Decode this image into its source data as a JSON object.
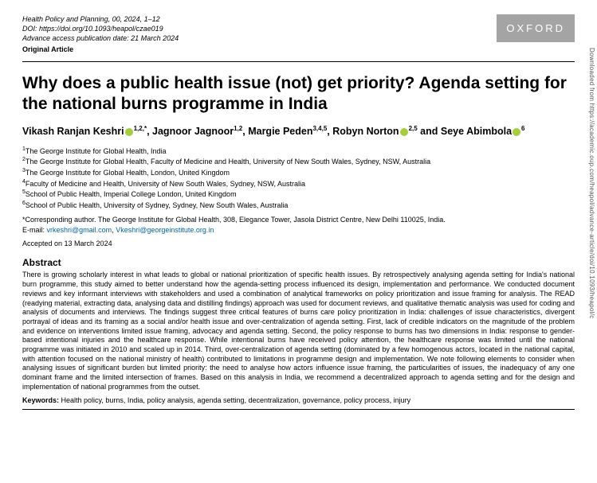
{
  "meta": {
    "journal_line": "Health Policy and Planning, 00, 2024, 1–12",
    "doi_line": "DOI: https://doi.org/10.1093/heapol/czae019",
    "access_line": "Advance access publication date: 21 March 2024",
    "article_type": "Original Article"
  },
  "publisher_badge": "OXFORD",
  "title": "Why does a public health issue (not) get priority? Agenda setting for the national burns programme in India",
  "authors": {
    "a1_name": "Vikash Ranjan Keshri",
    "a1_aff": "1,2,*",
    "a2_name": "Jagnoor Jagnoor",
    "a2_aff": "1,2",
    "a3_name": "Margie Peden",
    "a3_aff": "3,4,5",
    "a4_name": "Robyn Norton",
    "a4_aff": "2,5",
    "and": "and",
    "a5_name": "Seye Abimbola",
    "a5_aff": "6"
  },
  "affiliations": {
    "l1": "The George Institute for Global Health, India",
    "l2": "The George Institute for Global Health, Faculty of Medicine and Health, University of New South Wales, Sydney, NSW, Australia",
    "l3": "The George Institute for Global Health, London, United Kingdom",
    "l4": "Faculty of Medicine and Health, University of New South Wales, Sydney, NSW, Australia",
    "l5": "School of Public Health, Imperial College London, United Kingdom",
    "l6": "School of Public Health, University of Sydney, Sydney, New South Wales, Australia"
  },
  "corresponding": {
    "text": "*Corresponding author. The George Institute for Global Health, 308, Elegance Tower, Jasola District Centre, New Delhi 110025, India.",
    "email_label": "E-mail: ",
    "email1": "vrkeshri@gmail.com",
    "email_sep": ", ",
    "email2": "Vkeshri@georgeinstitute.org.in"
  },
  "accepted": "Accepted on 13 March 2024",
  "abstract": {
    "heading": "Abstract",
    "body": "There is growing scholarly interest in what leads to global or national prioritization of specific health issues. By retrospectively analysing agenda setting for India's national burn programme, this study aimed to better understand how the agenda-setting process influenced its design, implementation and performance. We conducted document reviews and key informant interviews with stakeholders and used a combination of analytical frameworks on policy prioritization and issue framing for analysis. The READ (readying material, extracting data, analysing data and distilling findings) approach was used for document reviews, and qualitative thematic analysis was used for coding and analysis of documents and interviews. The findings suggest three critical features of burns care policy prioritization in India: challenges of issue characteristics, divergent portrayal of ideas and its framing as a social and/or health issue and over-centralization of agenda setting. First, lack of credible indicators on the magnitude of the problem and evidence on interventions limited issue framing, advocacy and agenda setting. Second, the policy response to burns has two dimensions in India: response to gender-based intentional injuries and the healthcare response. While intentional burns have received policy attention, the healthcare response was limited until the national programme was initiated in 2010 and scaled up in 2014. Third, over-centralization of agenda setting (dominated by a few homogenous actors, located in the national capital, with attention focused on the national ministry of health) contributed to limitations in programme design and implementation. We note following elements to consider when analysing issues of significant burden but limited priority: the need to analyse how actors influence issue framing, the particularities of issues, the inadequacy of any one dominant frame and the limited intersection of frames. Based on this analysis in India, we recommend a decentralized approach to agenda setting and for the design and implementation of national programmes from the outset."
  },
  "keywords": {
    "label": "Keywords: ",
    "list": "Health policy, burns, India, policy analysis, agenda setting, decentralization, governance, policy process, injury"
  },
  "side_watermark": "Downloaded from https://academic.oup.com/heapol/advance-article/doi/10.1093/heapol/c"
}
